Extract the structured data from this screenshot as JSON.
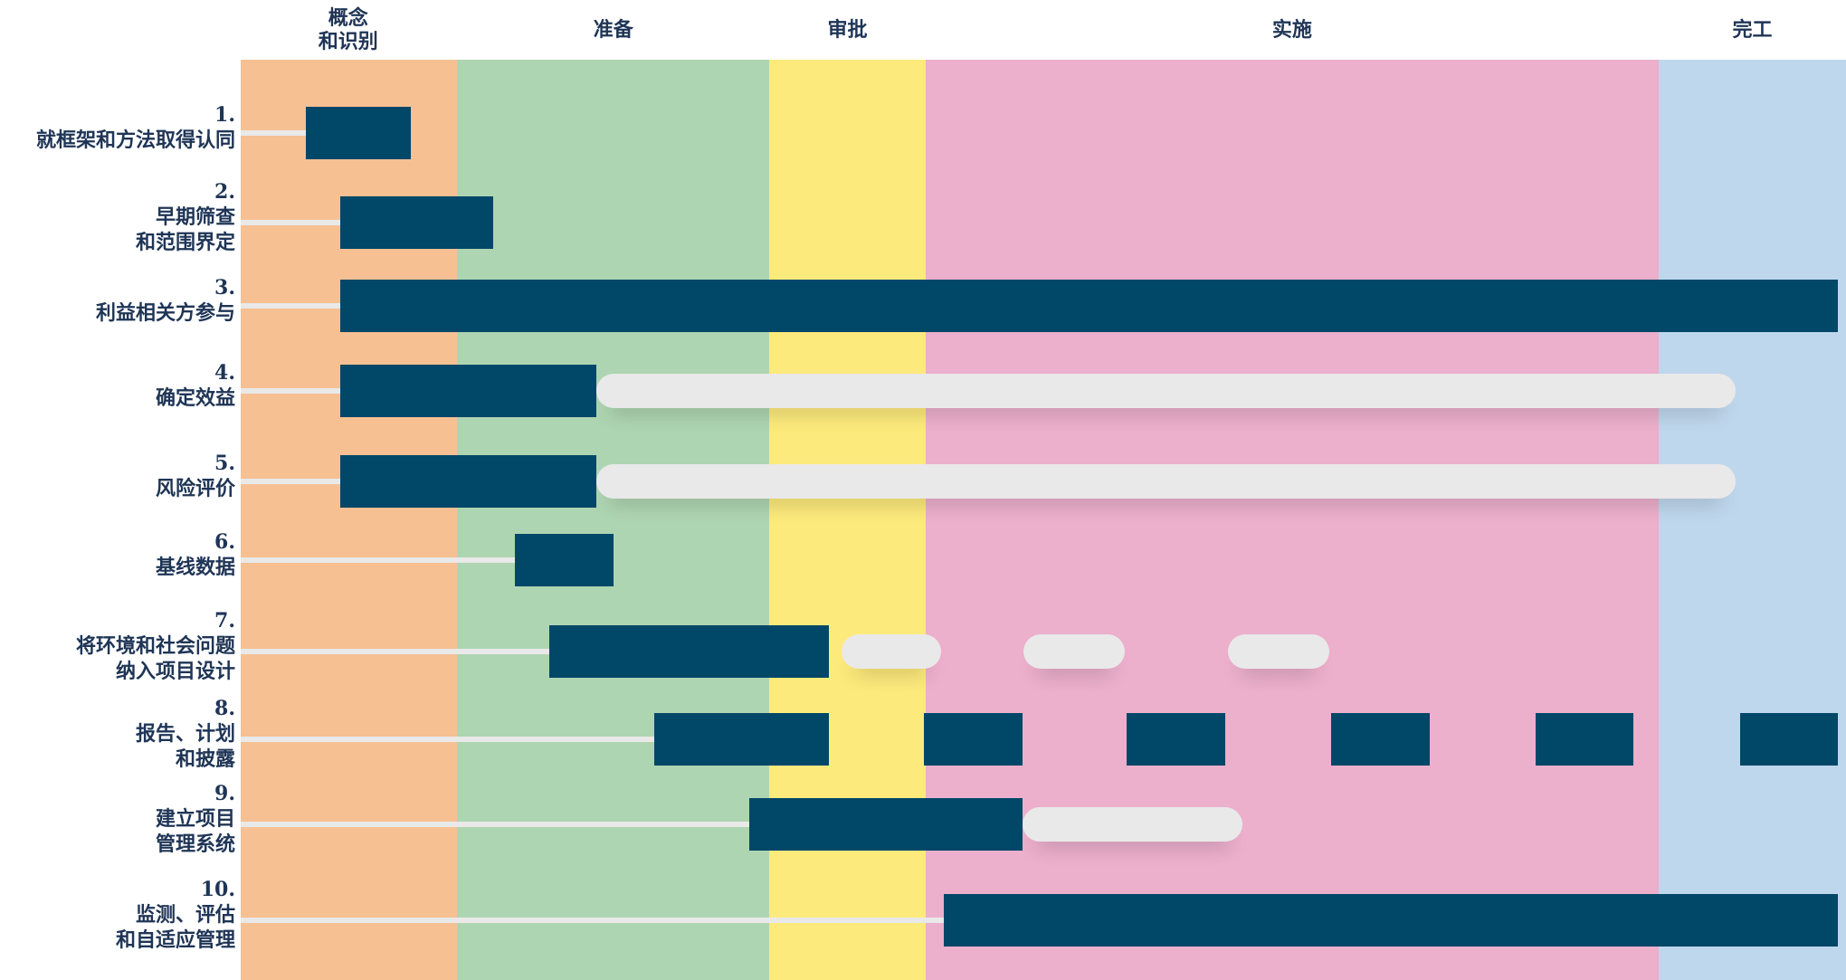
{
  "chart_data": {
    "type": "gantt",
    "phases": [
      {
        "name": "概念\n和识别",
        "color": "#f6c092",
        "start": 0,
        "end": 14
      },
      {
        "name": "准备",
        "color": "#aed5b1",
        "start": 14,
        "end": 34
      },
      {
        "name": "审批",
        "color": "#fdea7c",
        "start": 34,
        "end": 44
      },
      {
        "name": "实施",
        "color": "#ecafcc",
        "start": 44,
        "end": 91
      },
      {
        "name": "完工",
        "color": "#bfd7ed",
        "start": 91,
        "end": 103
      }
    ],
    "tasks": [
      {
        "number": "1.",
        "label": "就框架和方法取得认同",
        "active": [
          [
            4.3,
            11
          ]
        ],
        "extended": []
      },
      {
        "number": "2.",
        "label": "早期筛查\n和范围界定",
        "active": [
          [
            6.5,
            16.3
          ]
        ],
        "extended": []
      },
      {
        "number": "3.",
        "label": "利益相关方参与",
        "active": [
          [
            6.5,
            102.5
          ]
        ],
        "extended": []
      },
      {
        "number": "4.",
        "label": "确定效益",
        "active": [
          [
            6.5,
            22.9
          ]
        ],
        "extended": [
          [
            22.9,
            95.9
          ]
        ]
      },
      {
        "number": "5.",
        "label": "风险评价",
        "active": [
          [
            6.5,
            22.9
          ]
        ],
        "extended": [
          [
            22.9,
            95.9
          ]
        ]
      },
      {
        "number": "6.",
        "label": "基线数据",
        "active": [
          [
            17.7,
            24
          ]
        ],
        "extended": []
      },
      {
        "number": "7.",
        "label": "将环境和社会问题\n纳入项目设计",
        "active": [
          [
            19.9,
            37.8
          ]
        ],
        "extended": [
          [
            38.6,
            45
          ],
          [
            50.3,
            56.8
          ],
          [
            63.4,
            69.9
          ]
        ]
      },
      {
        "number": "8.",
        "label": "报告、计划\n和披露",
        "active": [
          [
            26.6,
            37.8
          ],
          [
            43.9,
            50.2
          ],
          [
            56.9,
            63.2
          ],
          [
            70,
            76.3
          ],
          [
            83.1,
            89.4
          ],
          [
            96.2,
            102.5
          ]
        ],
        "extended": []
      },
      {
        "number": "9.",
        "label": "建立项目\n管理系统",
        "active": [
          [
            32.7,
            50.2
          ]
        ],
        "extended": [
          [
            50.2,
            64.3
          ]
        ]
      },
      {
        "number": "10.",
        "label": "监测、评估\n和自适应管理",
        "active": [
          [
            45.2,
            102.5
          ]
        ],
        "extended": []
      }
    ]
  }
}
